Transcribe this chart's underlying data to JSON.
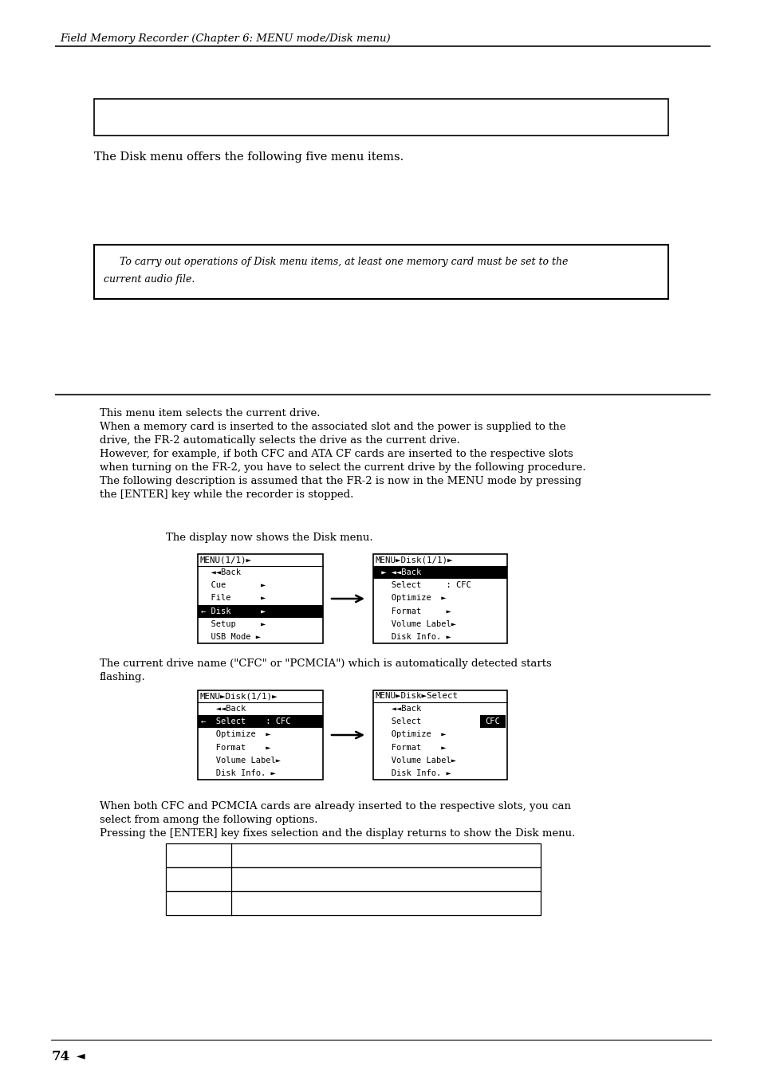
{
  "page_title": "Field Memory Recorder (Chapter 6: MENU mode/Disk menu)",
  "bg_color": "#ffffff",
  "intro_text": "The Disk menu offers the following five menu items.",
  "note_text_line1": "        To carry out operations of Disk menu items, at least one memory card must be set to the",
  "note_text_line2": "current audio file.",
  "body_lines": [
    "This menu item selects the current drive.",
    "When a memory card is inserted to the associated slot and the power is supplied to the",
    "drive, the FR-2 automatically selects the drive as the current drive.",
    "However, for example, if both CFC and ATA CF cards are inserted to the respective slots",
    "when turning on the FR-2, you have to select the current drive by the following procedure.",
    "The following description is assumed that the FR-2 is now in the MENU mode by pressing",
    "the [ENTER] key while the recorder is stopped."
  ],
  "display_caption": "The display now shows the Disk menu.",
  "menu1_title": "MENU(1/1)►",
  "menu1_items": [
    {
      "text": "  ◄◄Back",
      "hl": false
    },
    {
      "text": "  Cue       ►",
      "hl": false
    },
    {
      "text": "  File      ►",
      "hl": false
    },
    {
      "text": "← Disk      ►",
      "hl": true
    },
    {
      "text": "  Setup     ►",
      "hl": false
    },
    {
      "text": "  USB Mode ►",
      "hl": false
    }
  ],
  "menu2_title": "MENU►Disk(1/1)►",
  "menu2_items": [
    {
      "text": " ► ◄◄Back",
      "hl": true
    },
    {
      "text": "   Select     : CFC",
      "hl": false
    },
    {
      "text": "   Optimize  ►",
      "hl": false
    },
    {
      "text": "   Format     ►",
      "hl": false
    },
    {
      "text": "   Volume Label►",
      "hl": false
    },
    {
      "text": "   Disk Info. ►",
      "hl": false
    }
  ],
  "flash_line1": "The current drive name (\"CFC\" or \"PCMCIA\") which is automatically detected starts",
  "flash_line2": "flashing.",
  "menu3_title": "MENU►Disk(1/1)►",
  "menu3_items": [
    {
      "text": "   ◄◄Back",
      "hl": false
    },
    {
      "text": "←  Select    : CFC",
      "hl": true
    },
    {
      "text": "   Optimize  ►",
      "hl": false
    },
    {
      "text": "   Format    ►",
      "hl": false
    },
    {
      "text": "   Volume Label►",
      "hl": false
    },
    {
      "text": "   Disk Info. ►",
      "hl": false
    }
  ],
  "menu4_title": "MENU►Disk►Select",
  "menu4_items": [
    {
      "text": "   ◄◄Back",
      "hl": false
    },
    {
      "text": "   Select",
      "hl": false,
      "cfc_hl": true
    },
    {
      "text": "   Optimize  ►",
      "hl": false
    },
    {
      "text": "   Format    ►",
      "hl": false
    },
    {
      "text": "   Volume Label►",
      "hl": false
    },
    {
      "text": "   Disk Info. ►",
      "hl": false
    }
  ],
  "final_lines": [
    "When both CFC and PCMCIA cards are already inserted to the respective slots, you can",
    "select from among the following options.",
    "Pressing the [ENTER] key fixes selection and the display returns to show the Disk menu."
  ],
  "page_number": "74"
}
